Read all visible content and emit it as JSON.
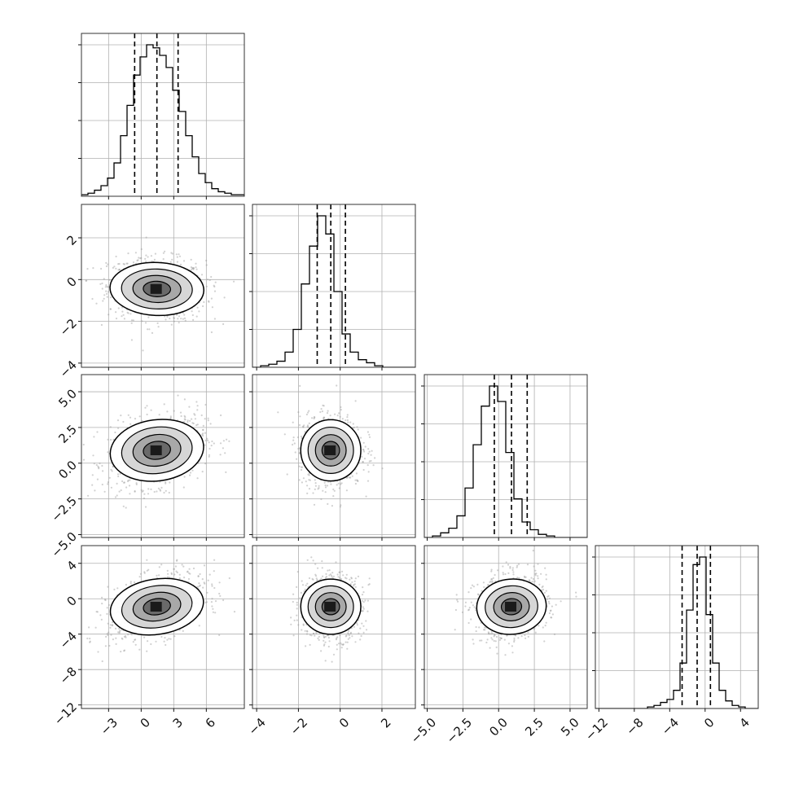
{
  "chart_data": {
    "type": "corner",
    "grid": true,
    "dims": [
      {
        "range": [
          -5.5,
          9.5
        ],
        "ticks": [
          -3,
          0,
          3,
          6
        ],
        "ticklabels": [
          "−3",
          "0",
          "3",
          "6"
        ],
        "quantiles": [
          -0.6,
          1.45,
          3.4
        ],
        "mean": 1.45,
        "sd": 1.95
      },
      {
        "range": [
          -4.2,
          3.6
        ],
        "ticks": [
          -4,
          -2,
          0,
          2
        ],
        "ticklabels": [
          "−4",
          "−2",
          "0",
          "2"
        ],
        "quantiles": [
          -1.1,
          -0.45,
          0.25
        ],
        "mean": -0.45,
        "sd": 0.65
      },
      {
        "range": [
          -5.2,
          6.2
        ],
        "ticks": [
          -5,
          -2.5,
          0,
          2.5,
          5
        ],
        "ticklabels": [
          "−5.0",
          "−2.5",
          "0.0",
          "2.5",
          "5.0"
        ],
        "quantiles": [
          -0.3,
          0.9,
          2.0
        ],
        "mean": 0.9,
        "sd": 1.1
      },
      {
        "range": [
          -12.4,
          6.0
        ],
        "ticks": [
          -12,
          -8,
          -4,
          0,
          4
        ],
        "ticklabels": [
          "−12",
          "−8",
          "−4",
          "0",
          "4"
        ],
        "quantiles": [
          -2.6,
          -0.9,
          0.6
        ],
        "mean": -0.9,
        "sd": 1.6
      }
    ],
    "histograms": [
      {
        "dim": 0,
        "counts": [
          1,
          2,
          4,
          7,
          12,
          22,
          40,
          60,
          80,
          92,
          100,
          98,
          93,
          85,
          70,
          56,
          40,
          26,
          15,
          9,
          5,
          3,
          2,
          1,
          1
        ]
      },
      {
        "dim": 1,
        "counts": [
          0,
          1,
          2,
          4,
          10,
          25,
          55,
          80,
          100,
          88,
          50,
          22,
          10,
          5,
          3,
          1,
          0,
          0,
          0,
          0
        ]
      },
      {
        "dim": 2,
        "counts": [
          0,
          1,
          3,
          6,
          14,
          32,
          60,
          85,
          98,
          88,
          55,
          25,
          10,
          5,
          2,
          1,
          0,
          0,
          0,
          0
        ]
      },
      {
        "dim": 3,
        "counts": [
          0,
          0,
          0,
          0,
          0,
          0,
          0,
          0,
          1,
          2,
          4,
          6,
          12,
          30,
          65,
          95,
          100,
          62,
          30,
          12,
          5,
          2,
          1,
          0,
          0
        ]
      }
    ],
    "correlations": {
      "1-0": -0.1,
      "2-0": 0.3,
      "2-1": 0.0,
      "3-0": 0.4,
      "3-1": 0.0,
      "3-2": 0.15
    }
  }
}
